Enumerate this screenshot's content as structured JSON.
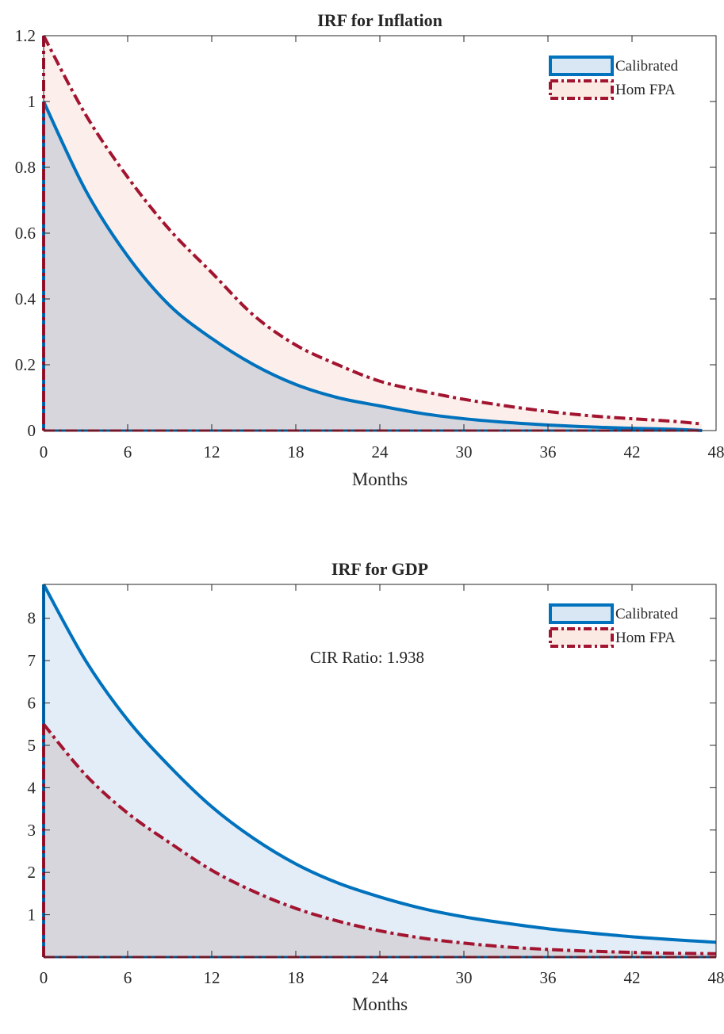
{
  "chart_data": [
    {
      "type": "area",
      "title": "IRF for Inflation",
      "xlabel": "Months",
      "ylabel": "",
      "xlim": [
        0,
        48
      ],
      "ylim": [
        0,
        1.2
      ],
      "xticks": [
        0,
        6,
        12,
        18,
        24,
        30,
        36,
        42,
        48
      ],
      "yticks": [
        0,
        0.2,
        0.4,
        0.6,
        0.8,
        1,
        1.2
      ],
      "xtick_labels": [
        "0",
        "6",
        "12",
        "18",
        "24",
        "30",
        "36",
        "42",
        "48"
      ],
      "ytick_labels": [
        "0",
        "0.2",
        "0.4",
        "0.6",
        "0.8",
        "1",
        "1.2"
      ],
      "legend_position": "top-right",
      "annotation": "",
      "x": [
        0,
        3,
        6,
        9,
        12,
        15,
        18,
        21,
        24,
        27,
        30,
        33,
        36,
        39,
        42,
        45,
        47
      ],
      "series": [
        {
          "name": "Calibrated",
          "color": "#0072bd",
          "fill": "#d9e7f5",
          "style": "solid",
          "values": [
            1.0,
            0.73,
            0.53,
            0.38,
            0.28,
            0.2,
            0.14,
            0.1,
            0.075,
            0.052,
            0.036,
            0.025,
            0.017,
            0.011,
            0.007,
            0.004,
            0.0
          ]
        },
        {
          "name": "Hom FPA",
          "color": "#a2142f",
          "fill": "#fbeae4",
          "style": "dashdot",
          "values": [
            1.2,
            0.96,
            0.77,
            0.61,
            0.48,
            0.35,
            0.26,
            0.2,
            0.15,
            0.12,
            0.095,
            0.075,
            0.058,
            0.045,
            0.036,
            0.028,
            0.02
          ]
        }
      ],
      "x_end": 48
    },
    {
      "type": "area",
      "title": "IRF for GDP",
      "xlabel": "Months",
      "ylabel": "",
      "xlim": [
        0,
        48
      ],
      "ylim": [
        0,
        8.8
      ],
      "xticks": [
        0,
        6,
        12,
        18,
        24,
        30,
        36,
        42,
        48
      ],
      "yticks": [
        1,
        2,
        3,
        4,
        5,
        6,
        7,
        8
      ],
      "xtick_labels": [
        "0",
        "6",
        "12",
        "18",
        "24",
        "30",
        "36",
        "42",
        "48"
      ],
      "ytick_labels": [
        "1",
        "2",
        "3",
        "4",
        "5",
        "6",
        "7",
        "8"
      ],
      "legend_position": "top-right",
      "annotation": "CIR Ratio:  1.938",
      "x": [
        0,
        3,
        6,
        9,
        12,
        15,
        18,
        21,
        24,
        27,
        30,
        33,
        36,
        39,
        42,
        45,
        48
      ],
      "series": [
        {
          "name": "Calibrated",
          "color": "#0072bd",
          "fill": "#d9e7f5",
          "style": "solid",
          "values": [
            8.8,
            7.0,
            5.6,
            4.5,
            3.55,
            2.8,
            2.2,
            1.75,
            1.42,
            1.15,
            0.95,
            0.8,
            0.67,
            0.57,
            0.48,
            0.41,
            0.35
          ]
        },
        {
          "name": "Hom FPA",
          "color": "#a2142f",
          "fill": "#fbeae4",
          "style": "dashdot",
          "values": [
            5.5,
            4.3,
            3.4,
            2.7,
            2.05,
            1.55,
            1.15,
            0.85,
            0.62,
            0.45,
            0.33,
            0.24,
            0.18,
            0.14,
            0.11,
            0.09,
            0.08
          ]
        }
      ],
      "x_end": 48
    }
  ]
}
